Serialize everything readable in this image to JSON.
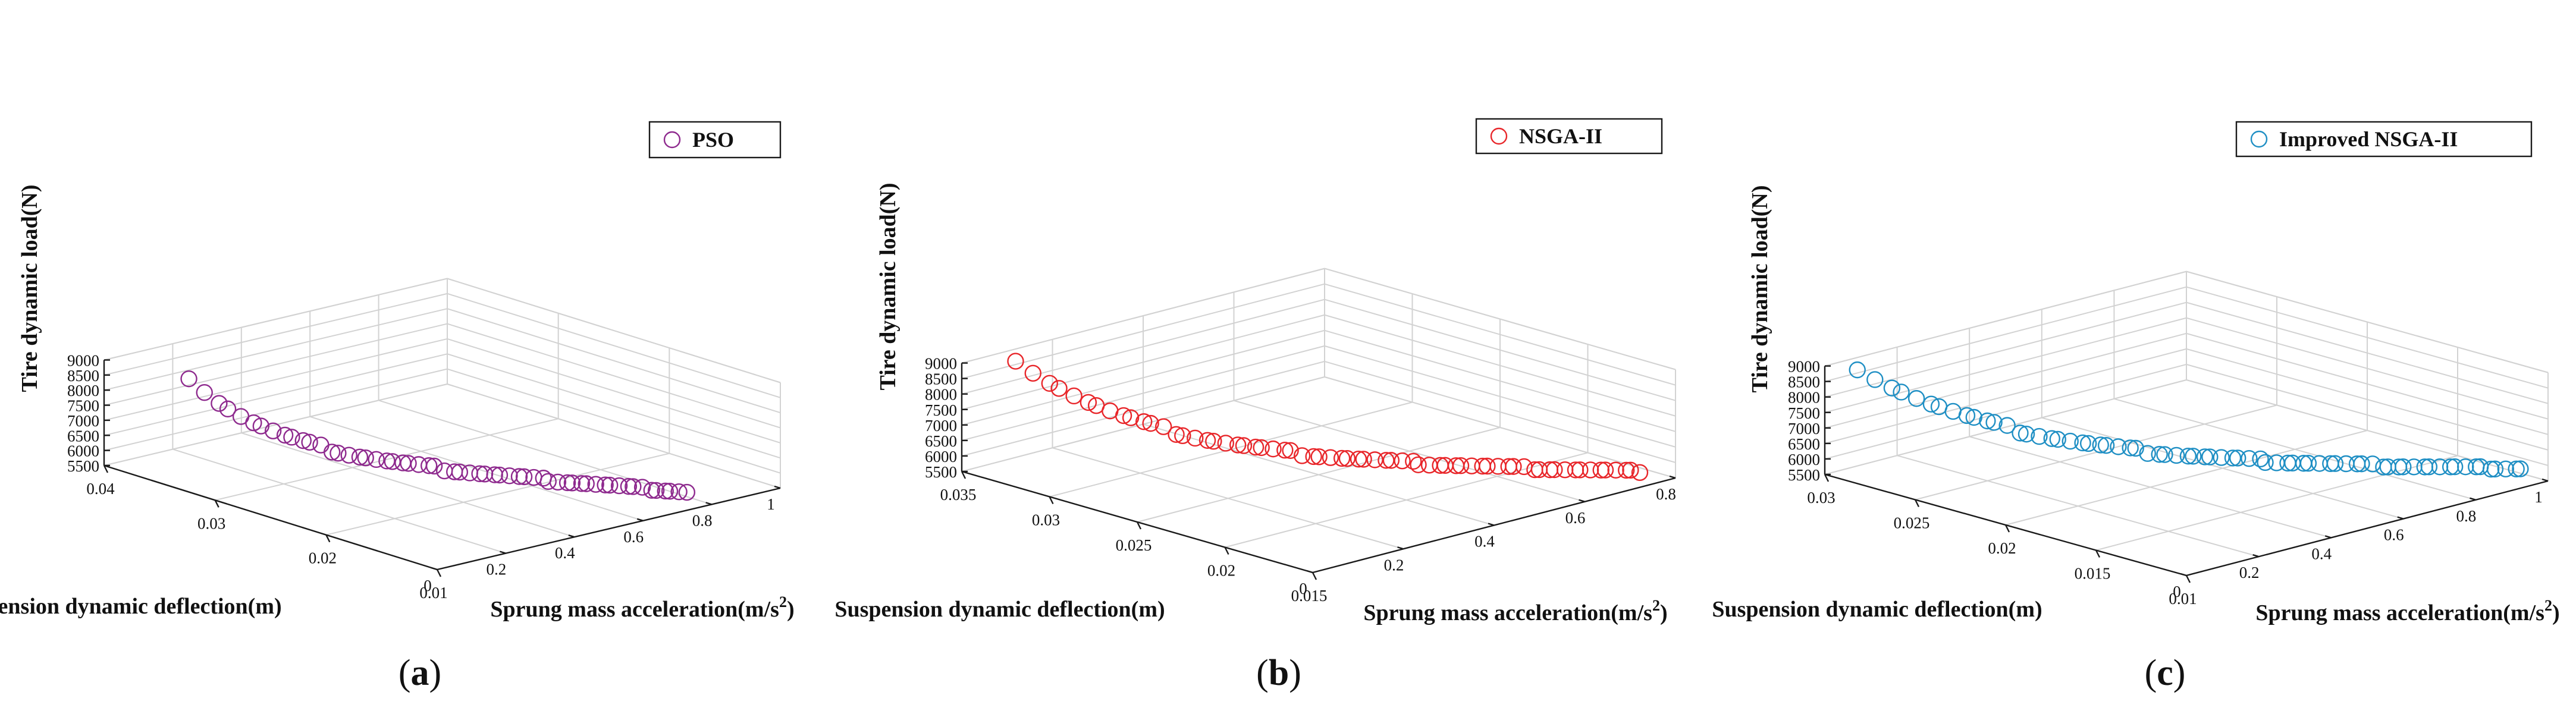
{
  "chart_data": [
    {
      "type": "scatter",
      "panel": "a",
      "caption_open": "(",
      "caption_letter": "a",
      "caption_close": ")",
      "series": [
        {
          "name": "PSO",
          "color": "#8e2a8e"
        }
      ],
      "x_label": "Sprung mass acceleration(m/s",
      "x_label_sup": "2",
      "x_label_close": ")",
      "y_label": "Suspension dynamic deflection(m)",
      "z_label": "Tire dynamic load(N)",
      "x_range": [
        0,
        1
      ],
      "y_range": [
        0.01,
        0.04
      ],
      "z_range": [
        5500,
        9000
      ],
      "x_ticks": [
        {
          "value": 0,
          "label": "0"
        },
        {
          "value": 0.2,
          "label": "0.2"
        },
        {
          "value": 0.4,
          "label": "0.4"
        },
        {
          "value": 0.6,
          "label": "0.6"
        },
        {
          "value": 0.8,
          "label": "0.8"
        },
        {
          "value": 1,
          "label": "1"
        }
      ],
      "y_ticks": [
        {
          "value": 0.01,
          "label": "0.01"
        },
        {
          "value": 0.02,
          "label": "0.02"
        },
        {
          "value": 0.03,
          "label": "0.03"
        },
        {
          "value": 0.04,
          "label": "0.04"
        }
      ],
      "z_ticks": [
        {
          "value": 5500,
          "label": "5500"
        },
        {
          "value": 6000,
          "label": "6000"
        },
        {
          "value": 6500,
          "label": "6500"
        },
        {
          "value": 7000,
          "label": "7000"
        },
        {
          "value": 7500,
          "label": "7500"
        },
        {
          "value": 8000,
          "label": "8000"
        },
        {
          "value": 8500,
          "label": "8500"
        },
        {
          "value": 9000,
          "label": "9000"
        }
      ],
      "front_start": [
        0.15,
        0.037
      ],
      "front_end": [
        0.76,
        0.011
      ],
      "z_start": 8400,
      "z_end": 5900,
      "decay": 6,
      "point_count": 58
    },
    {
      "type": "scatter",
      "panel": "b",
      "caption_open": "(",
      "caption_letter": "b",
      "caption_close": ")",
      "series": [
        {
          "name": "NSGA-II",
          "color": "#e8262a"
        }
      ],
      "x_label": "Sprung mass acceleration(m/s",
      "x_label_sup": "2",
      "x_label_close": ")",
      "y_label": "Suspension dynamic deflection(m)",
      "z_label": "Tire dynamic load(N)",
      "x_range": [
        0,
        0.8
      ],
      "y_range": [
        0.015,
        0.035
      ],
      "z_range": [
        5500,
        9000
      ],
      "x_ticks": [
        {
          "value": 0,
          "label": "0"
        },
        {
          "value": 0.2,
          "label": "0.2"
        },
        {
          "value": 0.4,
          "label": "0.4"
        },
        {
          "value": 0.6,
          "label": "0.6"
        },
        {
          "value": 0.8,
          "label": "0.8"
        }
      ],
      "y_ticks": [
        {
          "value": 0.015,
          "label": "0.015"
        },
        {
          "value": 0.02,
          "label": "0.02"
        },
        {
          "value": 0.025,
          "label": "0.025"
        },
        {
          "value": 0.03,
          "label": "0.03"
        },
        {
          "value": 0.035,
          "label": "0.035"
        }
      ],
      "z_ticks": [
        {
          "value": 5500,
          "label": "5500"
        },
        {
          "value": 6000,
          "label": "6000"
        },
        {
          "value": 6500,
          "label": "6500"
        },
        {
          "value": 7000,
          "label": "7000"
        },
        {
          "value": 7500,
          "label": "7500"
        },
        {
          "value": 8000,
          "label": "8000"
        },
        {
          "value": 8500,
          "label": "8500"
        },
        {
          "value": 9000,
          "label": "9000"
        }
      ],
      "front_start": [
        0.08,
        0.034
      ],
      "front_end": [
        0.76,
        0.016
      ],
      "z_start": 9000,
      "z_end": 5700,
      "decay": 4.5,
      "point_count": 66
    },
    {
      "type": "scatter",
      "panel": "c",
      "caption_open": "(",
      "caption_letter": "c",
      "caption_close": ")",
      "series": [
        {
          "name": "Improved NSGA-II",
          "color": "#1f8fc4"
        }
      ],
      "x_label": "Sprung mass acceleration(m/s",
      "x_label_sup": "2",
      "x_label_close": ")",
      "y_label": "Suspension dynamic deflection(m)",
      "z_label": "Tire dynamic load(N)",
      "x_range": [
        0,
        1
      ],
      "y_range": [
        0.01,
        0.03
      ],
      "z_range": [
        5500,
        9000
      ],
      "x_ticks": [
        {
          "value": 0,
          "label": "0"
        },
        {
          "value": 0.2,
          "label": "0.2"
        },
        {
          "value": 0.4,
          "label": "0.4"
        },
        {
          "value": 0.6,
          "label": "0.6"
        },
        {
          "value": 0.8,
          "label": "0.8"
        },
        {
          "value": 1,
          "label": "1"
        }
      ],
      "y_ticks": [
        {
          "value": 0.01,
          "label": "0.01"
        },
        {
          "value": 0.015,
          "label": "0.015"
        },
        {
          "value": 0.02,
          "label": "0.02"
        },
        {
          "value": 0.025,
          "label": "0.025"
        },
        {
          "value": 0.03,
          "label": "0.03"
        }
      ],
      "z_ticks": [
        {
          "value": 5500,
          "label": "5500"
        },
        {
          "value": 6000,
          "label": "6000"
        },
        {
          "value": 6500,
          "label": "6500"
        },
        {
          "value": 7000,
          "label": "7000"
        },
        {
          "value": 7500,
          "label": "7500"
        },
        {
          "value": 8000,
          "label": "8000"
        },
        {
          "value": 8500,
          "label": "8500"
        },
        {
          "value": 9000,
          "label": "9000"
        }
      ],
      "front_start": [
        0.04,
        0.029
      ],
      "front_end": [
        0.98,
        0.011
      ],
      "z_start": 9000,
      "z_end": 5800,
      "decay": 4,
      "point_count": 70
    }
  ]
}
